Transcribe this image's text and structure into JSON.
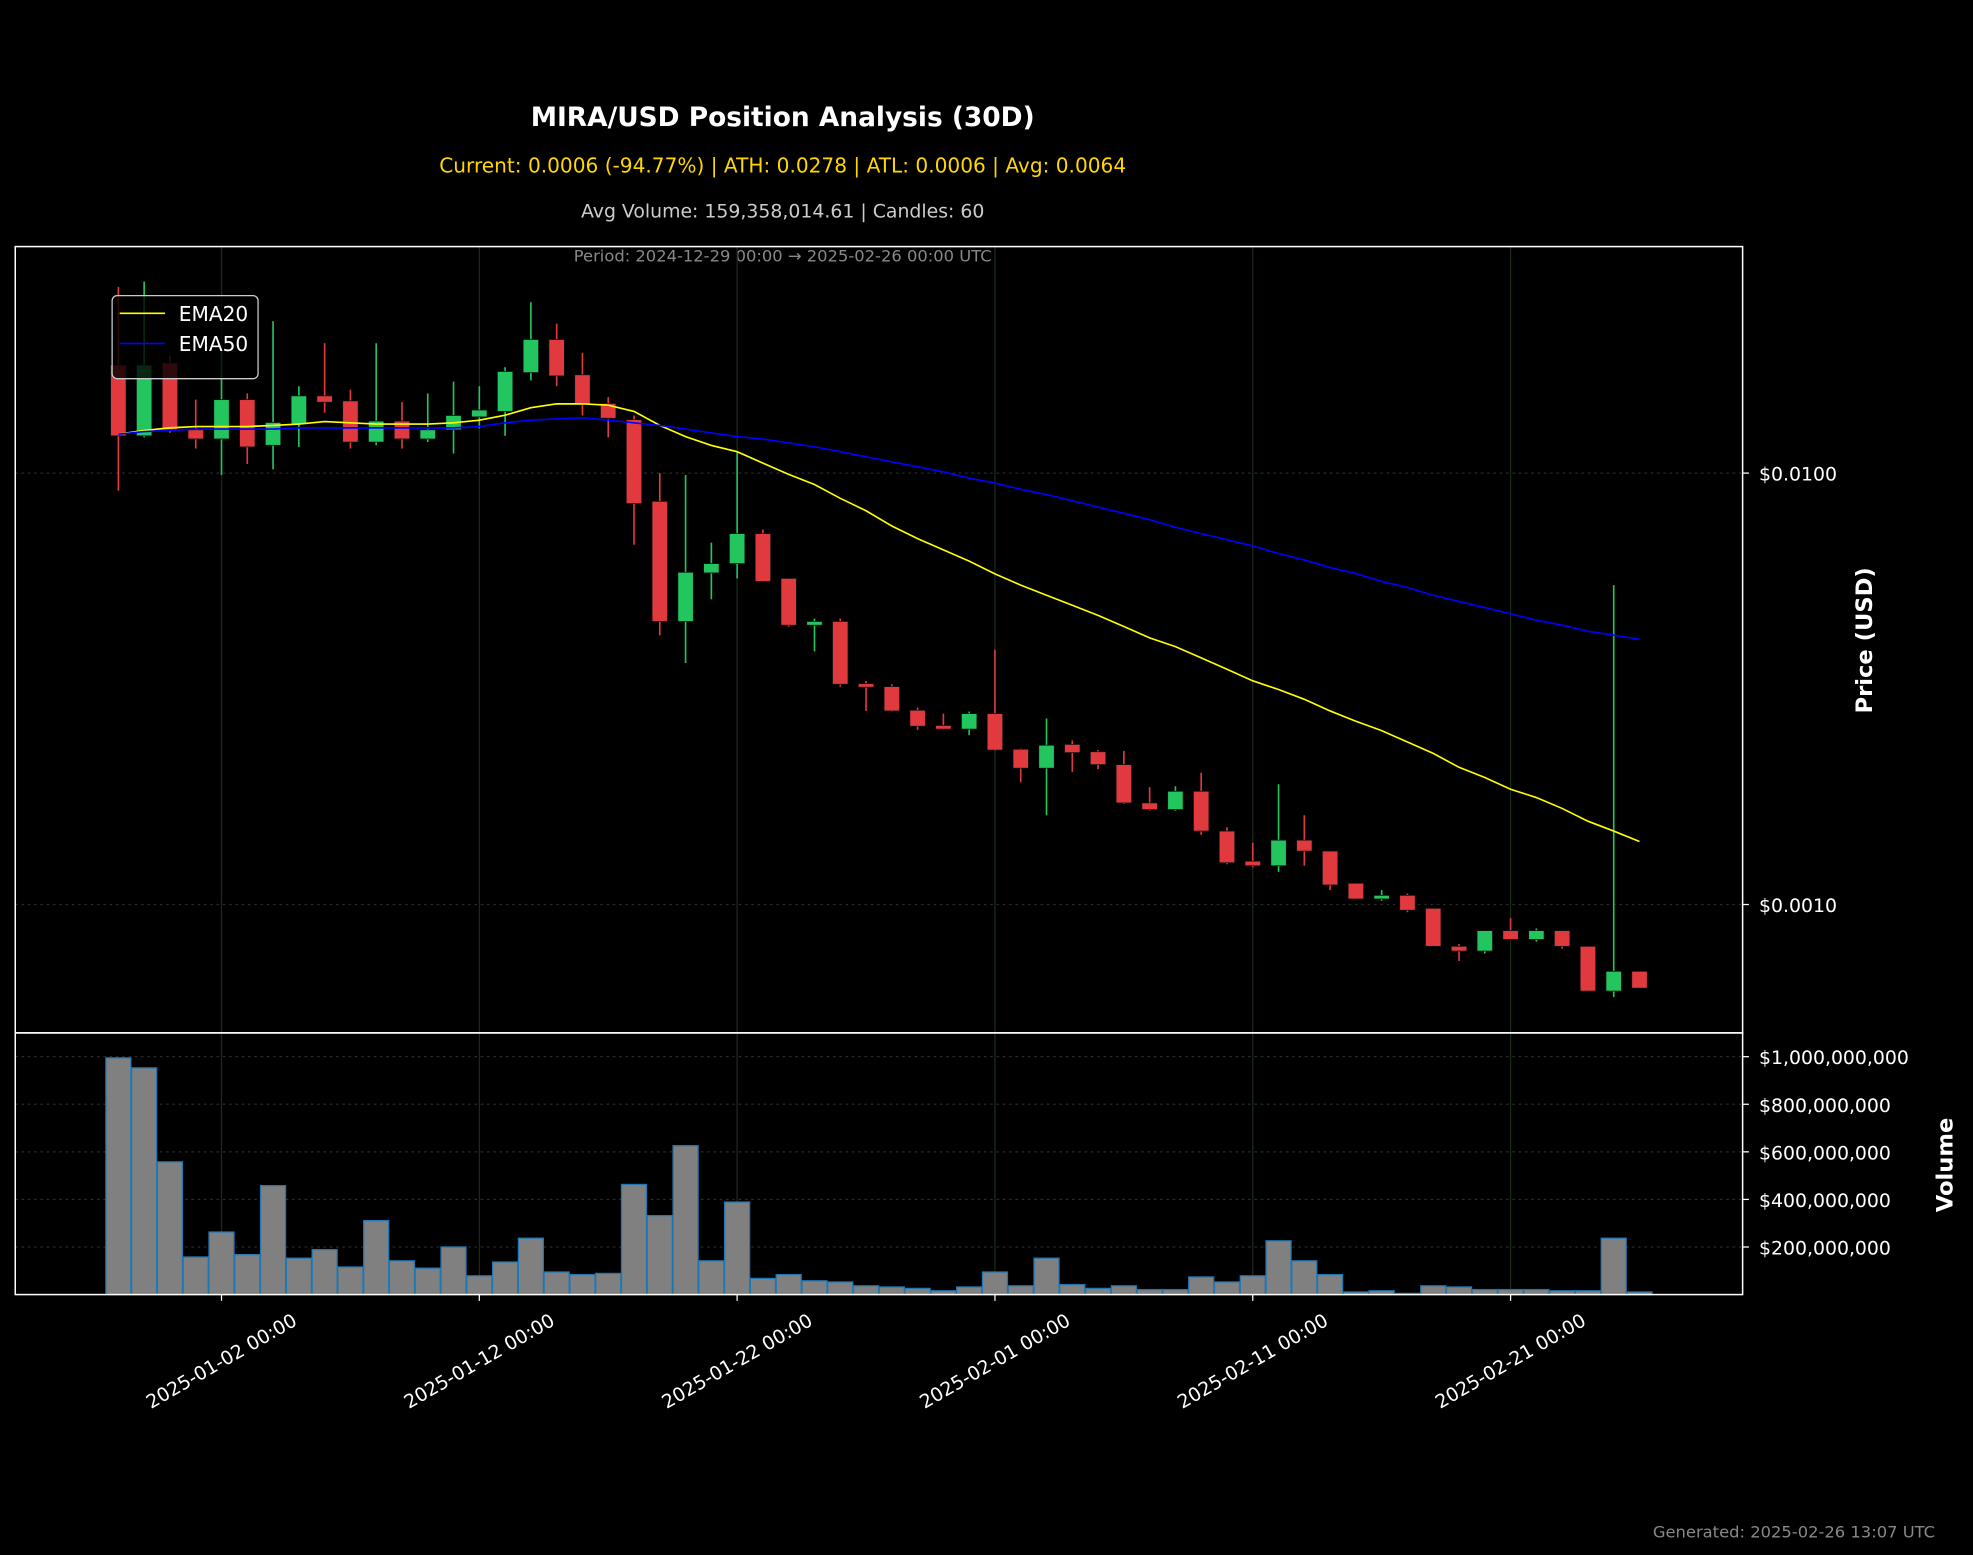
{
  "chart_data": [
    {
      "type": "candlestick",
      "title": "MIRA/USD Position Analysis (30D)",
      "subtitle": "Current: 0.0006 (-94.77%) | ATH: 0.0278 | ATL: 0.0006 | Avg: 0.0064",
      "info": "Avg Volume: 159,358,014.61 | Candles: 60",
      "period": "Period: 2024-12-29 00:00 → 2025-02-26 00:00 UTC",
      "footnote": "Generated: 2025-02-26 13:07 UTC",
      "ylabel": "Price (USD)",
      "x": [
        "2024-12-29 00:00",
        "2024-12-30 00:00",
        "2024-12-31 00:00",
        "2025-01-01 00:00",
        "2025-01-02 00:00",
        "2025-01-03 00:00",
        "2025-01-04 00:00",
        "2025-01-05 00:00",
        "2025-01-06 00:00",
        "2025-01-07 00:00",
        "2025-01-08 00:00",
        "2025-01-09 00:00",
        "2025-01-10 00:00",
        "2025-01-11 00:00",
        "2025-01-12 00:00",
        "2025-01-13 00:00",
        "2025-01-14 00:00",
        "2025-01-15 00:00",
        "2025-01-16 00:00",
        "2025-01-17 00:00",
        "2025-01-18 00:00",
        "2025-01-19 00:00",
        "2025-01-20 00:00",
        "2025-01-21 00:00",
        "2025-01-22 00:00",
        "2025-01-23 00:00",
        "2025-01-24 00:00",
        "2025-01-25 00:00",
        "2025-01-26 00:00",
        "2025-01-27 00:00",
        "2025-01-28 00:00",
        "2025-01-29 00:00",
        "2025-01-30 00:00",
        "2025-01-31 00:00",
        "2025-02-01 00:00",
        "2025-02-02 00:00",
        "2025-02-03 00:00",
        "2025-02-04 00:00",
        "2025-02-05 00:00",
        "2025-02-06 00:00",
        "2025-02-07 00:00",
        "2025-02-08 00:00",
        "2025-02-09 00:00",
        "2025-02-10 00:00",
        "2025-02-11 00:00",
        "2025-02-12 00:00",
        "2025-02-13 00:00",
        "2025-02-14 00:00",
        "2025-02-15 00:00",
        "2025-02-16 00:00",
        "2025-02-17 00:00",
        "2025-02-18 00:00",
        "2025-02-19 00:00",
        "2025-02-20 00:00",
        "2025-02-21 00:00",
        "2025-02-22 00:00",
        "2025-02-23 00:00",
        "2025-02-24 00:00",
        "2025-02-25 00:00",
        "2025-02-26 00:00"
      ],
      "open": [
        0.0178,
        0.0122,
        0.018,
        0.0126,
        0.012,
        0.0148,
        0.0116,
        0.013,
        0.0151,
        0.0147,
        0.0118,
        0.0132,
        0.012,
        0.0126,
        0.0135,
        0.0139,
        0.0171,
        0.0204,
        0.0169,
        0.0145,
        0.0133,
        0.0086,
        0.00453,
        0.00587,
        0.00617,
        0.00724,
        0.0057,
        0.00444,
        0.00453,
        0.00325,
        0.0032,
        0.00282,
        0.0026,
        0.00255,
        0.00277,
        0.00229,
        0.00207,
        0.00235,
        0.00226,
        0.00211,
        0.00172,
        0.00166,
        0.00183,
        0.00148,
        0.00126,
        0.00123,
        0.00141,
        0.00133,
        0.00112,
        0.00103,
        0.00105,
        0.00098,
        0.0008,
        0.00078,
        0.00087,
        0.00083,
        0.00087,
        0.0008,
        0.00063,
        0.0007
      ],
      "high": [
        0.027,
        0.0278,
        0.0187,
        0.0148,
        0.0193,
        0.0153,
        0.0225,
        0.0159,
        0.02,
        0.0156,
        0.02,
        0.0146,
        0.0153,
        0.0163,
        0.0159,
        0.0176,
        0.0249,
        0.0222,
        0.019,
        0.015,
        0.0136,
        0.01,
        0.0099,
        0.0069,
        0.0112,
        0.0074,
        0.0057,
        0.0046,
        0.0046,
        0.0033,
        0.00324,
        0.00286,
        0.00277,
        0.0028,
        0.0039,
        0.0023,
        0.0027,
        0.0024,
        0.00228,
        0.00227,
        0.00187,
        0.00188,
        0.00202,
        0.00151,
        0.00139,
        0.0019,
        0.00161,
        0.00133,
        0.00112,
        0.00108,
        0.00106,
        0.00098,
        0.00081,
        0.00087,
        0.00093,
        0.00088,
        0.00087,
        0.0008,
        0.0055,
        0.0007
      ],
      "low": [
        0.0091,
        0.0121,
        0.0124,
        0.0114,
        0.0099,
        0.0105,
        0.0102,
        0.0115,
        0.0138,
        0.0114,
        0.0116,
        0.0114,
        0.0118,
        0.0111,
        0.0127,
        0.0122,
        0.0164,
        0.0159,
        0.0136,
        0.0121,
        0.00682,
        0.00421,
        0.00363,
        0.0051,
        0.0057,
        0.0056,
        0.0044,
        0.00386,
        0.0032,
        0.00281,
        0.0028,
        0.00254,
        0.00254,
        0.00247,
        0.00227,
        0.00192,
        0.00161,
        0.00203,
        0.00206,
        0.00171,
        0.00165,
        0.00165,
        0.00145,
        0.00124,
        0.00122,
        0.00119,
        0.00123,
        0.00108,
        0.00103,
        0.00102,
        0.00096,
        0.0008,
        0.00074,
        0.00077,
        0.00083,
        0.00082,
        0.00079,
        0.00063,
        0.00061,
        0.00064
      ],
      "close": [
        0.0122,
        0.0178,
        0.0126,
        0.012,
        0.0148,
        0.0115,
        0.0131,
        0.0151,
        0.0146,
        0.0118,
        0.0132,
        0.012,
        0.0126,
        0.0136,
        0.014,
        0.0172,
        0.0204,
        0.0168,
        0.0144,
        0.0134,
        0.0085,
        0.00453,
        0.00589,
        0.00617,
        0.00724,
        0.00561,
        0.00444,
        0.00453,
        0.00324,
        0.00319,
        0.00281,
        0.00259,
        0.00255,
        0.00277,
        0.00228,
        0.00207,
        0.00234,
        0.00225,
        0.00211,
        0.00172,
        0.00166,
        0.00183,
        0.00148,
        0.00125,
        0.00123,
        0.00141,
        0.00133,
        0.00111,
        0.00103,
        0.00105,
        0.00097,
        0.0008,
        0.00078,
        0.00087,
        0.00083,
        0.00087,
        0.0008,
        0.00063,
        0.0007,
        0.00064
      ],
      "up_color": "#22c55e",
      "down_color": "#e03a3e",
      "series": [
        {
          "name": "EMA20",
          "color": "#ffff00",
          "values": [
            0.01231,
            0.01256,
            0.01273,
            0.01282,
            0.01282,
            0.01282,
            0.0129,
            0.01299,
            0.01317,
            0.01308,
            0.01299,
            0.01299,
            0.01299,
            0.01308,
            0.01326,
            0.01362,
            0.01418,
            0.01447,
            0.01447,
            0.01437,
            0.0139,
            0.0129,
            0.01215,
            0.01159,
            0.01121,
            0.01055,
            0.00993,
            0.00941,
            0.00874,
            0.00818,
            0.00754,
            0.00705,
            0.00664,
            0.00625,
            0.00584,
            0.0055,
            0.00521,
            0.00494,
            0.00468,
            0.00441,
            0.00415,
            0.00396,
            0.00373,
            0.00351,
            0.0033,
            0.00315,
            0.00299,
            0.00281,
            0.00266,
            0.00253,
            0.00238,
            0.00224,
            0.00208,
            0.00197,
            0.00185,
            0.00177,
            0.00167,
            0.00156,
            0.00148,
            0.0014
          ]
        },
        {
          "name": "EMA50",
          "color": "#0000ff",
          "values": [
            0.01231,
            0.01248,
            0.01256,
            0.01265,
            0.01265,
            0.01265,
            0.01265,
            0.01273,
            0.01273,
            0.01273,
            0.01273,
            0.01273,
            0.01273,
            0.01273,
            0.01282,
            0.01308,
            0.01326,
            0.01335,
            0.01344,
            0.01326,
            0.01308,
            0.0129,
            0.01265,
            0.01239,
            0.01215,
            0.01199,
            0.01175,
            0.01151,
            0.01121,
            0.01091,
            0.01062,
            0.01034,
            0.01007,
            0.00973,
            0.00948,
            0.00917,
            0.00892,
            0.00863,
            0.00834,
            0.00807,
            0.0078,
            0.00749,
            0.00724,
            0.00701,
            0.00678,
            0.00651,
            0.00629,
            0.00604,
            0.00585,
            0.00561,
            0.00543,
            0.00521,
            0.00504,
            0.00488,
            0.00472,
            0.00456,
            0.00444,
            0.0043,
            0.00421,
            0.00412
          ]
        }
      ],
      "log_scale": true,
      "grid": true,
      "legend": "upper left",
      "xlim": [
        "2024-12-25 00:00",
        "2025-03-02 00:00"
      ],
      "ylim": [
        0.000504,
        0.0335
      ],
      "yticks": [
        {
          "value": 0.001,
          "label": "$0.0010"
        },
        {
          "value": 0.01,
          "label": "$0.0100"
        }
      ]
    },
    {
      "type": "bar",
      "ylabel": "Volume",
      "x": [
        "2024-12-29 00:00",
        "2024-12-30 00:00",
        "2024-12-31 00:00",
        "2025-01-01 00:00",
        "2025-01-02 00:00",
        "2025-01-03 00:00",
        "2025-01-04 00:00",
        "2025-01-05 00:00",
        "2025-01-06 00:00",
        "2025-01-07 00:00",
        "2025-01-08 00:00",
        "2025-01-09 00:00",
        "2025-01-10 00:00",
        "2025-01-11 00:00",
        "2025-01-12 00:00",
        "2025-01-13 00:00",
        "2025-01-14 00:00",
        "2025-01-15 00:00",
        "2025-01-16 00:00",
        "2025-01-17 00:00",
        "2025-01-18 00:00",
        "2025-01-19 00:00",
        "2025-01-20 00:00",
        "2025-01-21 00:00",
        "2025-01-22 00:00",
        "2025-01-23 00:00",
        "2025-01-24 00:00",
        "2025-01-25 00:00",
        "2025-01-26 00:00",
        "2025-01-27 00:00",
        "2025-01-28 00:00",
        "2025-01-29 00:00",
        "2025-01-30 00:00",
        "2025-01-31 00:00",
        "2025-02-01 00:00",
        "2025-02-02 00:00",
        "2025-02-03 00:00",
        "2025-02-04 00:00",
        "2025-02-05 00:00",
        "2025-02-06 00:00",
        "2025-02-07 00:00",
        "2025-02-08 00:00",
        "2025-02-09 00:00",
        "2025-02-10 00:00",
        "2025-02-11 00:00",
        "2025-02-12 00:00",
        "2025-02-13 00:00",
        "2025-02-14 00:00",
        "2025-02-15 00:00",
        "2025-02-16 00:00",
        "2025-02-17 00:00",
        "2025-02-18 00:00",
        "2025-02-19 00:00",
        "2025-02-20 00:00",
        "2025-02-21 00:00",
        "2025-02-22 00:00",
        "2025-02-23 00:00",
        "2025-02-24 00:00",
        "2025-02-25 00:00",
        "2025-02-26 00:00"
      ],
      "values": [
        995000000,
        953000000,
        558000000,
        158000000,
        263000000,
        168000000,
        458000000,
        153000000,
        189000000,
        116000000,
        311000000,
        142000000,
        111000000,
        200000000,
        79000000,
        137000000,
        237000000,
        95000000,
        84000000,
        89000000,
        463000000,
        332000000,
        626000000,
        142000000,
        389000000,
        68000000,
        84000000,
        58000000,
        53000000,
        37000000,
        32000000,
        26000000,
        16000000,
        32000000,
        95000000,
        37000000,
        153000000,
        42000000,
        26000000,
        37000000,
        21000000,
        21000000,
        74000000,
        53000000,
        79000000,
        226000000,
        142000000,
        84000000,
        11000000,
        16000000,
        5000000,
        37000000,
        32000000,
        21000000,
        21000000,
        21000000,
        16000000,
        16000000,
        237000000,
        11000000
      ],
      "color": "#808080",
      "edge_color": "#1f77b4",
      "grid": true,
      "xlim": [
        "2024-12-25 00:00",
        "2025-03-02 00:00"
      ],
      "ylim": [
        0,
        1100000000
      ],
      "yticks": [
        {
          "value": 200000000,
          "label": "$200,000,000"
        },
        {
          "value": 400000000,
          "label": "$400,000,000"
        },
        {
          "value": 600000000,
          "label": "$600,000,000"
        },
        {
          "value": 800000000,
          "label": "$800,000,000"
        },
        {
          "value": 1000000000,
          "label": "$1,000,000,000"
        }
      ],
      "xticks": [
        "2025-01-02 00:00",
        "2025-01-12 00:00",
        "2025-01-22 00:00",
        "2025-02-01 00:00",
        "2025-02-11 00:00",
        "2025-02-21 00:00"
      ]
    }
  ]
}
